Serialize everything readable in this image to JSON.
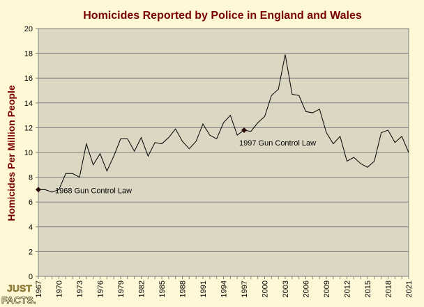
{
  "logo": {
    "line1": "JUST",
    "line2": "FACTS."
  },
  "chart_data": {
    "type": "line",
    "title": "Homicides Reported by Police in England and Wales",
    "xlabel": "",
    "ylabel": "Homicides Per Million People",
    "xlim": [
      1967,
      2021
    ],
    "ylim": [
      0,
      20
    ],
    "y_ticks": [
      0,
      2,
      4,
      6,
      8,
      10,
      12,
      14,
      16,
      18,
      20
    ],
    "x_ticks": [
      1967,
      1970,
      1973,
      1976,
      1979,
      1982,
      1985,
      1988,
      1991,
      1994,
      1997,
      2000,
      2003,
      2006,
      2009,
      2012,
      2015,
      2018,
      2021
    ],
    "grid": "horizontal",
    "colors": {
      "title": "#7a0000",
      "ylabel": "#7a0000",
      "plot_bg": "#dcd7c3",
      "page_bg": "#fff8d6",
      "line": "#000000",
      "grid": "#7f7f7f"
    },
    "series": [
      {
        "x": [
          1967,
          1968,
          1969,
          1970,
          1971,
          1972,
          1973,
          1974,
          1975,
          1976,
          1977,
          1978,
          1979,
          1980,
          1981,
          1982,
          1983,
          1984,
          1985,
          1986,
          1987,
          1988,
          1989,
          1990,
          1991,
          1992,
          1993,
          1994,
          1995,
          1996,
          1997,
          1998,
          1999,
          2000,
          2001,
          2002,
          2003,
          2004,
          2005,
          2006,
          2007,
          2008,
          2009,
          2010,
          2011,
          2012,
          2013,
          2014,
          2015,
          2016,
          2017,
          2018,
          2019,
          2020,
          2021
        ],
        "values": [
          7.0,
          7.0,
          6.8,
          7.0,
          8.3,
          8.3,
          8.0,
          10.7,
          9.0,
          9.9,
          8.5,
          9.7,
          11.1,
          11.1,
          10.1,
          11.2,
          9.7,
          10.8,
          10.7,
          11.2,
          11.9,
          10.9,
          10.3,
          10.9,
          12.3,
          11.4,
          11.1,
          12.4,
          13.0,
          11.4,
          11.8,
          11.7,
          12.4,
          12.9,
          14.6,
          15.1,
          17.9,
          14.7,
          14.6,
          13.3,
          13.2,
          13.5,
          11.6,
          10.7,
          11.3,
          9.3,
          9.6,
          9.1,
          8.8,
          9.3,
          11.6,
          11.8,
          10.8,
          11.3,
          10.0
        ]
      }
    ],
    "markers": [
      {
        "x": 1967,
        "y": 7.0,
        "label": "1968 Gun Control Law"
      },
      {
        "x": 1997,
        "y": 11.8,
        "label": "1997 Gun Control Law"
      }
    ]
  }
}
